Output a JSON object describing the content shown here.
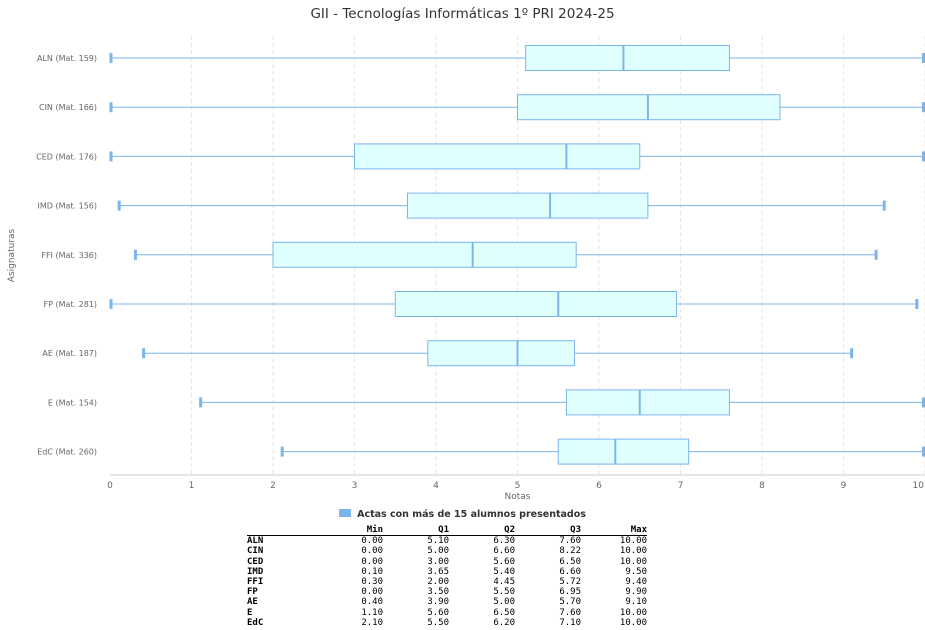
{
  "chart_data": {
    "type": "boxplot",
    "title": "GII - Tecnologías Informáticas 1º PRI 2024-25",
    "xlabel": "Notas",
    "ylabel": "Asignaturas",
    "xlim": [
      0,
      10
    ],
    "xticks": [
      "0",
      "1",
      "2",
      "3",
      "4",
      "5",
      "6",
      "7",
      "8",
      "9",
      "10"
    ],
    "categories": [
      "ALN (Mat. 159)",
      "CIN (Mat. 166)",
      "CED (Mat. 176)",
      "IMD (Mat. 156)",
      "FFI (Mat. 336)",
      "FP (Mat. 281)",
      "AE (Mat. 187)",
      "E (Mat. 154)",
      "EdC (Mat. 260)"
    ],
    "boxes": [
      {
        "min": 0.0,
        "q1": 5.1,
        "q2": 6.3,
        "q3": 7.6,
        "max": 10.0
      },
      {
        "min": 0.0,
        "q1": 5.0,
        "q2": 6.6,
        "q3": 8.22,
        "max": 10.0
      },
      {
        "min": 0.0,
        "q1": 3.0,
        "q2": 5.6,
        "q3": 6.5,
        "max": 10.0
      },
      {
        "min": 0.1,
        "q1": 3.65,
        "q2": 5.4,
        "q3": 6.6,
        "max": 9.5
      },
      {
        "min": 0.3,
        "q1": 2.0,
        "q2": 4.45,
        "q3": 5.72,
        "max": 9.4
      },
      {
        "min": 0.0,
        "q1": 3.5,
        "q2": 5.5,
        "q3": 6.95,
        "max": 9.9
      },
      {
        "min": 0.4,
        "q1": 3.9,
        "q2": 5.0,
        "q3": 5.7,
        "max": 9.1
      },
      {
        "min": 1.1,
        "q1": 5.6,
        "q2": 6.5,
        "q3": 7.6,
        "max": 10.0
      },
      {
        "min": 2.1,
        "q1": 5.5,
        "q2": 6.2,
        "q3": 7.1,
        "max": 10.0
      }
    ],
    "legend": {
      "label": "Actas con más de 15 alumnos presentados",
      "position": "bottom-center"
    },
    "grid": {
      "vertical": true,
      "style": "dashed"
    },
    "colors": {
      "box_fill": "#e0ffff",
      "box_stroke": "#7cb5ec",
      "whisker": "#7cb5ec",
      "median": "#7cb5ec",
      "grid": "#e6e6e6"
    },
    "table": {
      "columns": [
        "Min",
        "Q1",
        "Q2",
        "Q3",
        "Max"
      ],
      "rows": [
        {
          "label": "ALN",
          "values": [
            "0.00",
            "5.10",
            "6.30",
            "7.60",
            "10.00"
          ]
        },
        {
          "label": "CIN",
          "values": [
            "0.00",
            "5.00",
            "6.60",
            "8.22",
            "10.00"
          ]
        },
        {
          "label": "CED",
          "values": [
            "0.00",
            "3.00",
            "5.60",
            "6.50",
            "10.00"
          ]
        },
        {
          "label": "IMD",
          "values": [
            "0.10",
            "3.65",
            "5.40",
            "6.60",
            "9.50"
          ]
        },
        {
          "label": "FFI",
          "values": [
            "0.30",
            "2.00",
            "4.45",
            "5.72",
            "9.40"
          ]
        },
        {
          "label": "FP",
          "values": [
            "0.00",
            "3.50",
            "5.50",
            "6.95",
            "9.90"
          ]
        },
        {
          "label": "AE",
          "values": [
            "0.40",
            "3.90",
            "5.00",
            "5.70",
            "9.10"
          ]
        },
        {
          "label": "E",
          "values": [
            "1.10",
            "5.60",
            "6.50",
            "7.60",
            "10.00"
          ]
        },
        {
          "label": "EdC",
          "values": [
            "2.10",
            "5.50",
            "6.20",
            "7.10",
            "10.00"
          ]
        }
      ]
    }
  }
}
